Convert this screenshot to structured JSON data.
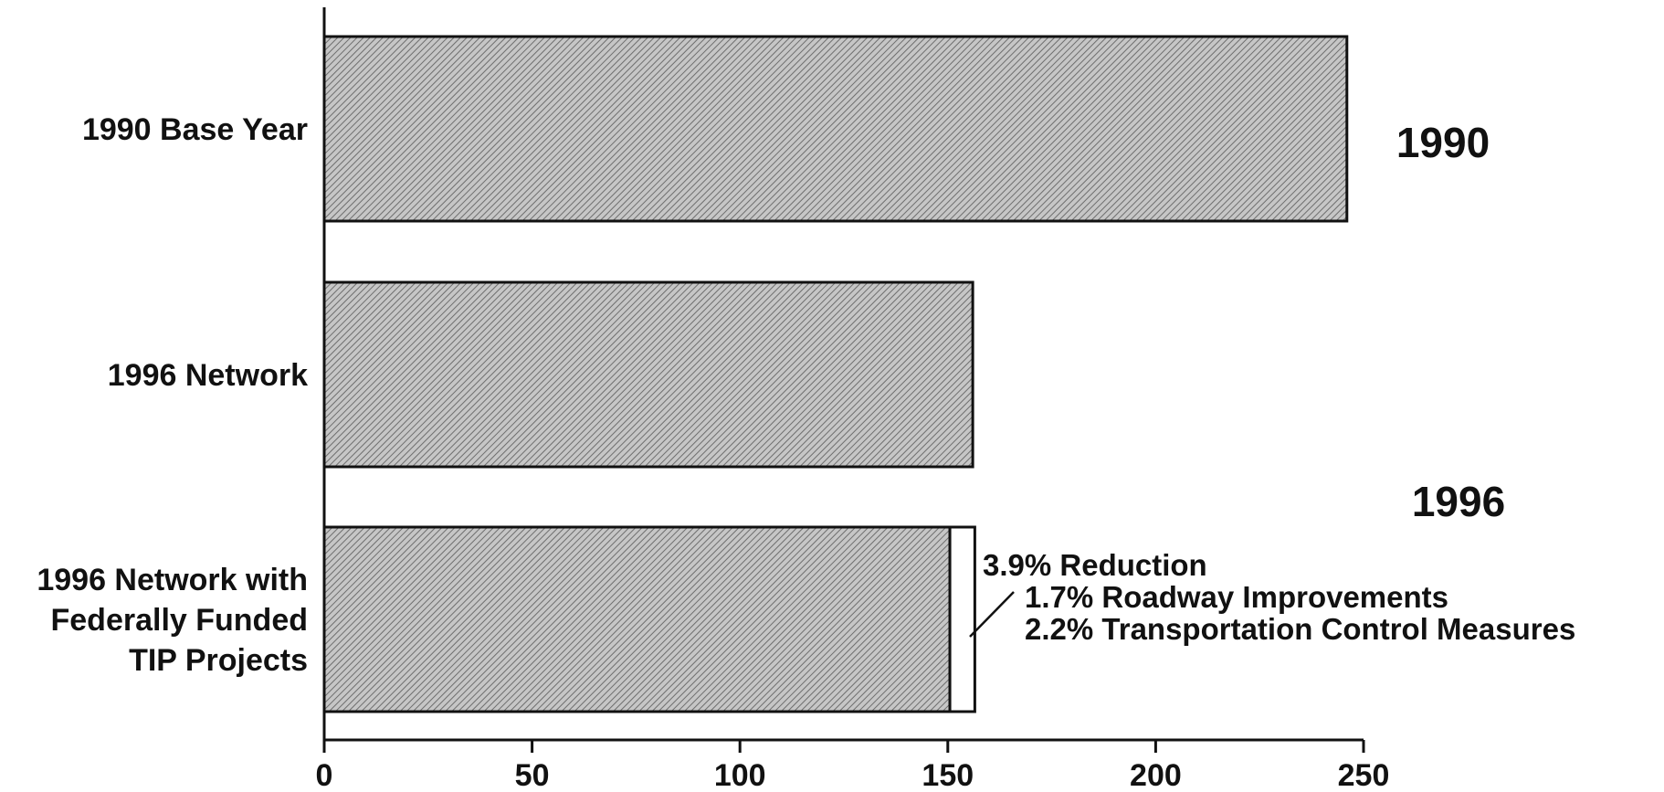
{
  "chart_data": {
    "type": "bar",
    "orientation": "horizontal",
    "categories": [
      [
        "1990 Base Year"
      ],
      [
        "1996 Network"
      ],
      [
        "1996 Network with",
        "Federally Funded",
        "TIP Projects"
      ]
    ],
    "values": [
      246,
      156,
      150.5
    ],
    "reduction_segment": {
      "category_index": 2,
      "from": 150.5,
      "to": 156.5
    },
    "xlim": [
      0,
      250
    ],
    "xticks": [
      0,
      50,
      100,
      150,
      200,
      250
    ],
    "title": "",
    "xlabel": "",
    "ylabel": "",
    "grid": false,
    "colors": {
      "bar_fill": "#c6c6c6",
      "bar_hatch": "#6e6e6e",
      "reduction_fill": "#ffffff",
      "ink": "#111111"
    },
    "year_labels": [
      "1990",
      "1996"
    ],
    "annotation": {
      "lines": [
        "3.9% Reduction",
        "1.7% Roadway Improvements",
        "2.2% Transportation Control Measures"
      ]
    }
  }
}
